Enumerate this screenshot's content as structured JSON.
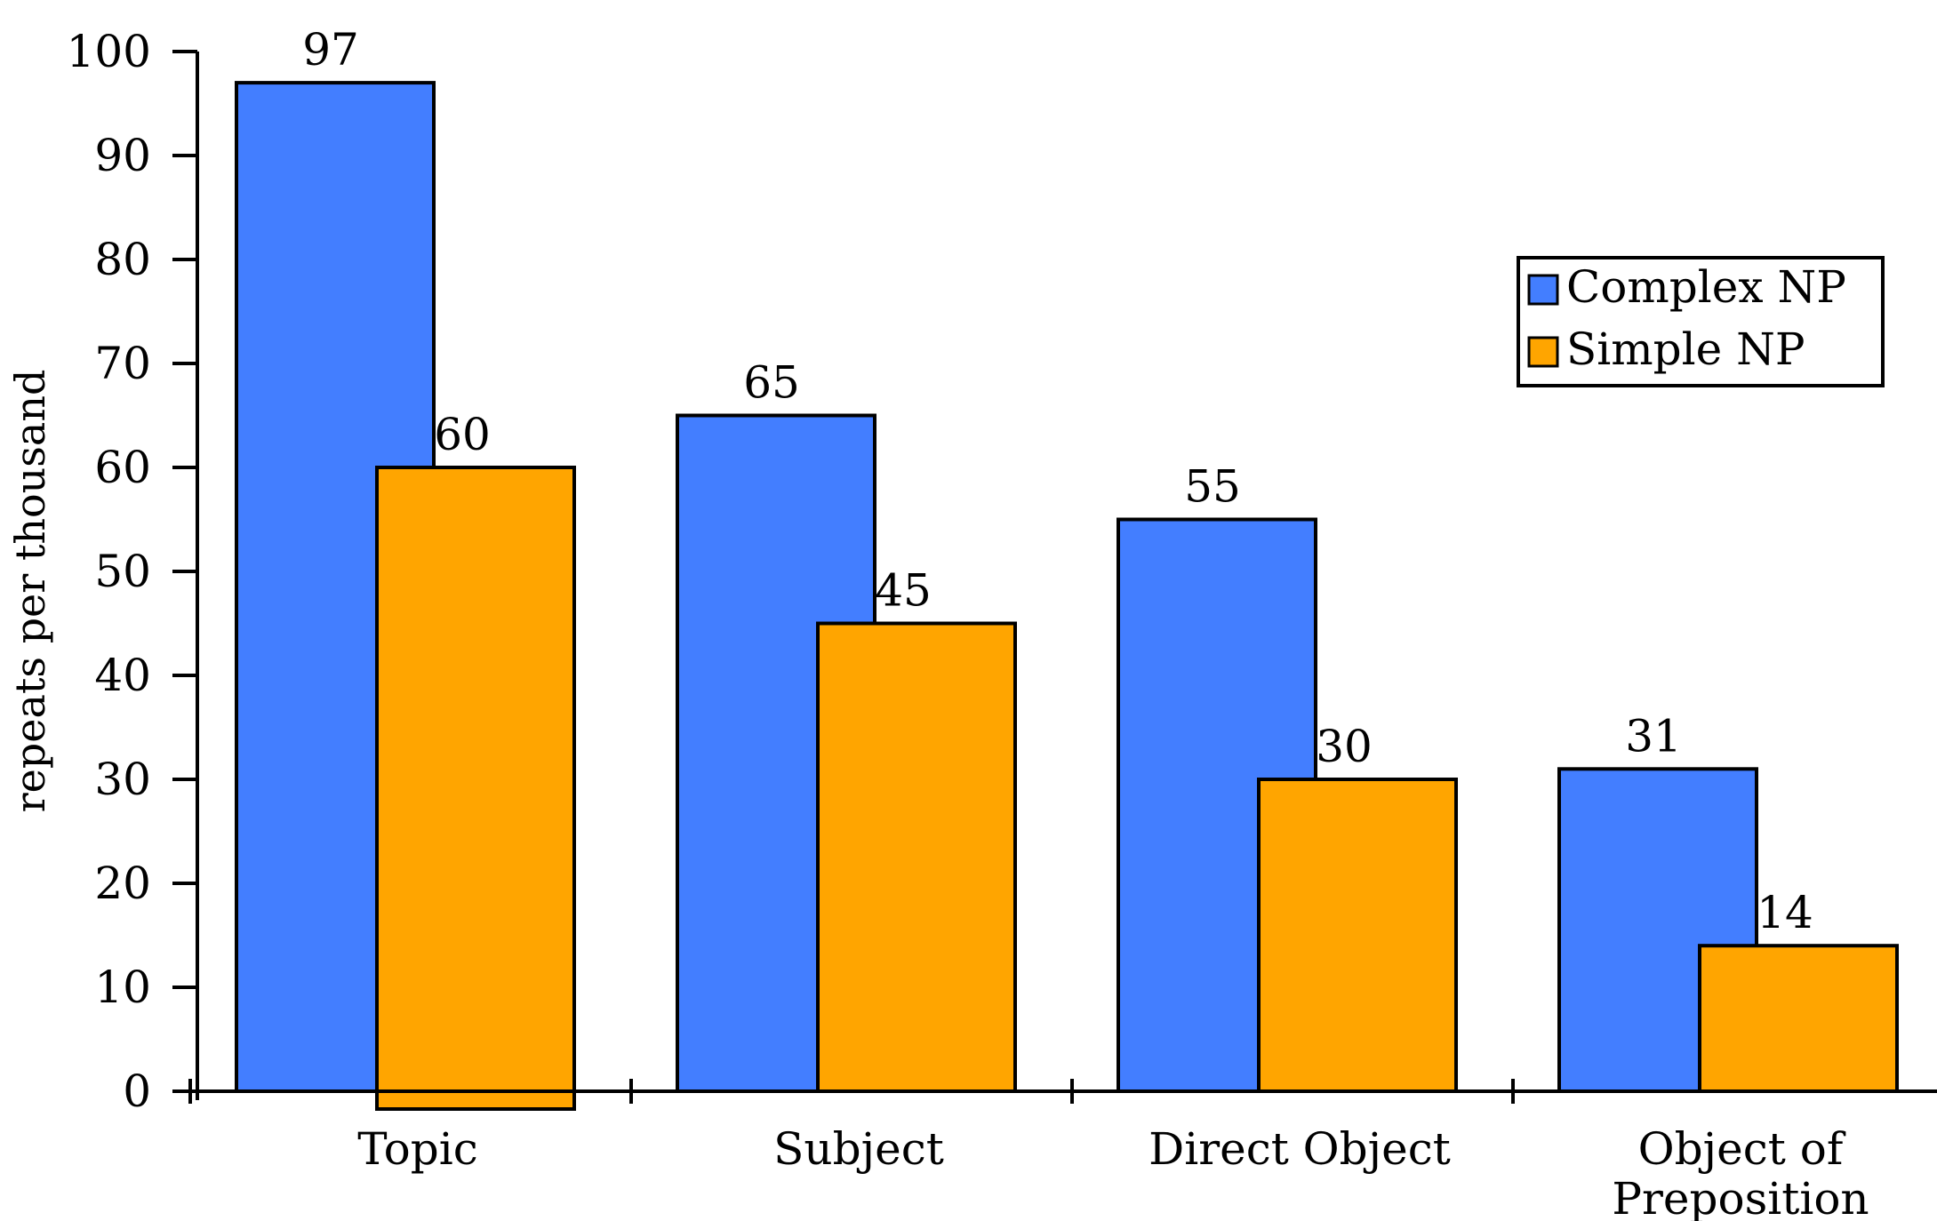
{
  "chart_data": {
    "type": "bar",
    "categories": [
      "Topic",
      "Subject",
      "Direct Object",
      "Object of Preposition"
    ],
    "category_lines": [
      [
        "Topic"
      ],
      [
        "Subject"
      ],
      [
        "Direct Object"
      ],
      [
        "Object of",
        "Preposition"
      ]
    ],
    "series": [
      {
        "name": "Complex NP",
        "values": [
          97,
          65,
          55,
          31
        ],
        "labels": [
          "97",
          "65",
          "55",
          "31"
        ],
        "color": "#437EFF"
      },
      {
        "name": "Simple NP",
        "values": [
          60,
          45,
          30,
          14
        ],
        "labels": [
          "60",
          "45",
          "30",
          "14"
        ],
        "color": "#FFA500"
      }
    ],
    "ylabel": "repeats per thousand",
    "xlabel": "",
    "ylim": [
      0,
      100
    ],
    "yticks": [
      0,
      10,
      20,
      30,
      40,
      50,
      60,
      70,
      80,
      90,
      100
    ],
    "grid": false,
    "legend_position": "top-right"
  }
}
